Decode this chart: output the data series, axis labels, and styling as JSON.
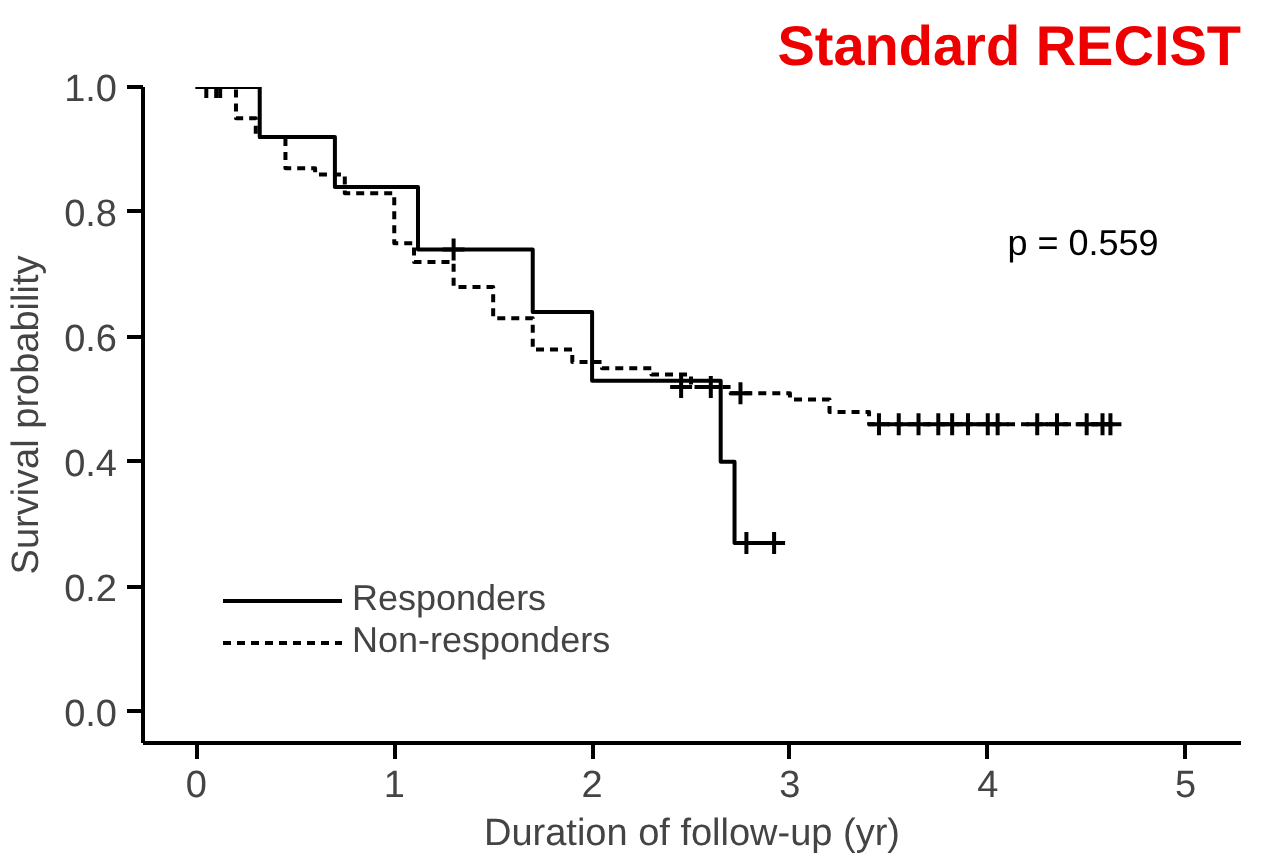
{
  "chart_data": {
    "type": "step",
    "title": "Standard RECIST",
    "xlabel": "Duration of follow-up (yr)",
    "ylabel": "Survival probability",
    "xlim": [
      -0.27,
      5.28
    ],
    "ylim": [
      -0.05,
      1.0
    ],
    "xticks": [
      0,
      1,
      2,
      3,
      4,
      5
    ],
    "yticks": [
      {
        "value": 0,
        "label": "0.0"
      },
      0.2,
      0.4,
      0.6,
      0.8,
      {
        "value": 1,
        "label": "1.0"
      }
    ],
    "grid": false,
    "legend": "bottom left",
    "annotations": [
      "p = 0.559"
    ],
    "series": [
      {
        "name": "Responders",
        "color": "#000000",
        "line_style": "solid",
        "x": [
          0,
          0.32,
          0.7,
          1.12,
          1.7,
          2.0,
          2.65,
          2.72,
          2.95
        ],
        "values": [
          1.0,
          0.92,
          0.84,
          0.74,
          0.64,
          0.53,
          0.4,
          0.27,
          0.27
        ]
      },
      {
        "name": "Non-responders",
        "color": "#000000",
        "line_style": "dashed",
        "x": [
          0,
          0.2,
          0.3,
          0.45,
          0.6,
          0.75,
          1.0,
          1.1,
          1.3,
          1.5,
          1.7,
          1.9,
          2.05,
          2.3,
          2.5,
          2.7,
          3.0,
          3.2,
          3.4,
          4.62
        ],
        "values": [
          1.0,
          0.95,
          0.92,
          0.87,
          0.86,
          0.83,
          0.75,
          0.72,
          0.68,
          0.63,
          0.58,
          0.56,
          0.55,
          0.54,
          0.52,
          0.51,
          0.5,
          0.48,
          0.46,
          0.46
        ]
      },
      {
        "type": "scatter",
        "marker": "cross",
        "color": "#000000",
        "x": [
          0.12,
          1.3,
          2.78,
          2.92
        ],
        "values": [
          1.0,
          0.74,
          0.27,
          0.27
        ]
      },
      {
        "type": "scatter",
        "marker": "cross",
        "color": "#000000",
        "x": [
          0.05,
          0.1,
          2.45,
          2.6,
          2.75,
          3.45,
          3.55,
          3.65,
          3.75,
          3.82,
          3.9,
          4.0,
          4.05,
          4.25,
          4.35,
          4.5,
          4.58,
          4.62
        ],
        "values": [
          1.0,
          1.0,
          0.52,
          0.52,
          0.51,
          0.46,
          0.46,
          0.46,
          0.46,
          0.46,
          0.46,
          0.46,
          0.46,
          0.46,
          0.46,
          0.46,
          0.46,
          0.46
        ]
      }
    ]
  }
}
